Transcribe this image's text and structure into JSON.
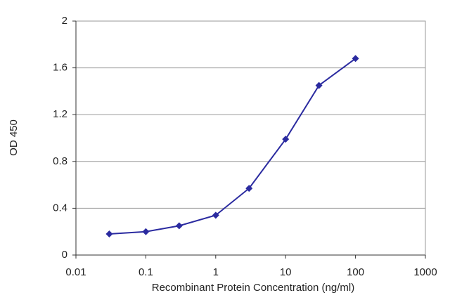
{
  "chart_data": {
    "type": "line",
    "x_scale": "log",
    "xlabel": "Recombinant Protein Concentration (ng/ml)",
    "ylabel": "OD 450",
    "x": [
      0.03,
      0.1,
      0.3,
      1,
      3,
      10,
      30,
      100
    ],
    "values": [
      0.18,
      0.2,
      0.25,
      0.34,
      0.57,
      0.99,
      1.45,
      1.68
    ],
    "color": "#2b2ba0",
    "xlim": [
      0.01,
      1000
    ],
    "xticks": [
      0.01,
      0.1,
      1,
      10,
      100,
      1000
    ],
    "ylim": [
      0,
      2
    ],
    "yticks": [
      0,
      0.4,
      0.8,
      1.2,
      1.6,
      2
    ],
    "grid": true
  }
}
